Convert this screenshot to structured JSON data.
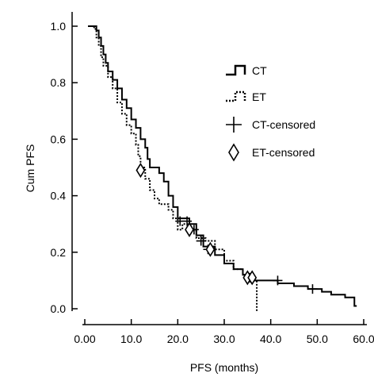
{
  "chart_data": {
    "type": "line",
    "title": "",
    "xlabel": "PFS (months)",
    "ylabel": "Cum PFS",
    "xlim": [
      0,
      60
    ],
    "ylim": [
      0,
      1.0
    ],
    "x_ticks": [
      0,
      10,
      20,
      30,
      40,
      50,
      60
    ],
    "x_tick_labels": [
      "0.00",
      "10.0",
      "20.0",
      "30.0",
      "40.0",
      "50.0",
      "60.0"
    ],
    "y_ticks": [
      0,
      0.2,
      0.4,
      0.6,
      0.8,
      1.0
    ],
    "y_tick_labels": [
      "0.0",
      "0.2",
      "0.4",
      "0.6",
      "0.8",
      "1.0"
    ],
    "grid": false,
    "legend_position": "top-right",
    "legend": [
      {
        "label": "CT",
        "symbol": "solid-step"
      },
      {
        "label": "ET",
        "symbol": "dotted-step"
      },
      {
        "label": "CT-censored",
        "symbol": "plus"
      },
      {
        "label": "ET-censored",
        "symbol": "diamond"
      }
    ],
    "series": [
      {
        "name": "CT",
        "style": "solid",
        "steps": [
          [
            0.7,
            1.0
          ],
          [
            2.5,
            0.985
          ],
          [
            3.0,
            0.96
          ],
          [
            3.5,
            0.93
          ],
          [
            4.0,
            0.9
          ],
          [
            4.5,
            0.87
          ],
          [
            5.0,
            0.84
          ],
          [
            6.0,
            0.81
          ],
          [
            7.0,
            0.78
          ],
          [
            8.0,
            0.74
          ],
          [
            9.0,
            0.71
          ],
          [
            10.0,
            0.67
          ],
          [
            11.0,
            0.64
          ],
          [
            12.0,
            0.6
          ],
          [
            13.0,
            0.57
          ],
          [
            13.5,
            0.53
          ],
          [
            14.0,
            0.5
          ],
          [
            16.0,
            0.48
          ],
          [
            17.0,
            0.45
          ],
          [
            18.0,
            0.4
          ],
          [
            19.0,
            0.36
          ],
          [
            20.0,
            0.32
          ],
          [
            22.5,
            0.3
          ],
          [
            24.0,
            0.26
          ],
          [
            25.5,
            0.22
          ],
          [
            28.0,
            0.19
          ],
          [
            30.0,
            0.16
          ],
          [
            32.0,
            0.14
          ],
          [
            34.0,
            0.12
          ],
          [
            36.0,
            0.1
          ],
          [
            40.0,
            0.1
          ],
          [
            41.5,
            0.09
          ],
          [
            45.0,
            0.08
          ],
          [
            48.0,
            0.07
          ],
          [
            51.0,
            0.06
          ],
          [
            53.0,
            0.05
          ],
          [
            56.0,
            0.04
          ],
          [
            58.0,
            0.01
          ]
        ],
        "end_x": 58.5
      },
      {
        "name": "ET",
        "style": "dotted",
        "steps": [
          [
            0.7,
            1.0
          ],
          [
            2.0,
            0.99
          ],
          [
            2.5,
            0.96
          ],
          [
            3.0,
            0.93
          ],
          [
            3.5,
            0.89
          ],
          [
            4.0,
            0.86
          ],
          [
            5.0,
            0.82
          ],
          [
            6.0,
            0.78
          ],
          [
            7.0,
            0.73
          ],
          [
            8.0,
            0.69
          ],
          [
            9.0,
            0.65
          ],
          [
            10.0,
            0.62
          ],
          [
            11.0,
            0.58
          ],
          [
            11.5,
            0.54
          ],
          [
            12.0,
            0.5
          ],
          [
            13.0,
            0.46
          ],
          [
            14.0,
            0.42
          ],
          [
            15.0,
            0.39
          ],
          [
            16.0,
            0.37
          ],
          [
            18.0,
            0.35
          ],
          [
            19.0,
            0.32
          ],
          [
            20.0,
            0.28
          ],
          [
            21.0,
            0.3
          ],
          [
            22.5,
            0.28
          ],
          [
            24.0,
            0.25
          ],
          [
            26.0,
            0.24
          ],
          [
            28.0,
            0.21
          ],
          [
            30.0,
            0.17
          ],
          [
            32.0,
            0.14
          ],
          [
            34.0,
            0.12
          ],
          [
            35.5,
            0.1
          ],
          [
            37.0,
            0.07
          ],
          [
            37.0,
            -0.01
          ]
        ],
        "end_x": 37.0
      }
    ],
    "censored": [
      {
        "name": "CT-censored",
        "marker": "plus",
        "points": [
          [
            20.5,
            0.31
          ],
          [
            22.0,
            0.31
          ],
          [
            23.5,
            0.28
          ],
          [
            25.0,
            0.24
          ],
          [
            26.5,
            0.21
          ],
          [
            35.5,
            0.11
          ],
          [
            41.5,
            0.1
          ],
          [
            49.0,
            0.07
          ]
        ]
      },
      {
        "name": "ET-censored",
        "marker": "diamond",
        "points": [
          [
            12.0,
            0.49
          ],
          [
            22.5,
            0.28
          ],
          [
            27.0,
            0.21
          ],
          [
            35.0,
            0.11
          ],
          [
            36.0,
            0.11
          ]
        ]
      }
    ]
  }
}
